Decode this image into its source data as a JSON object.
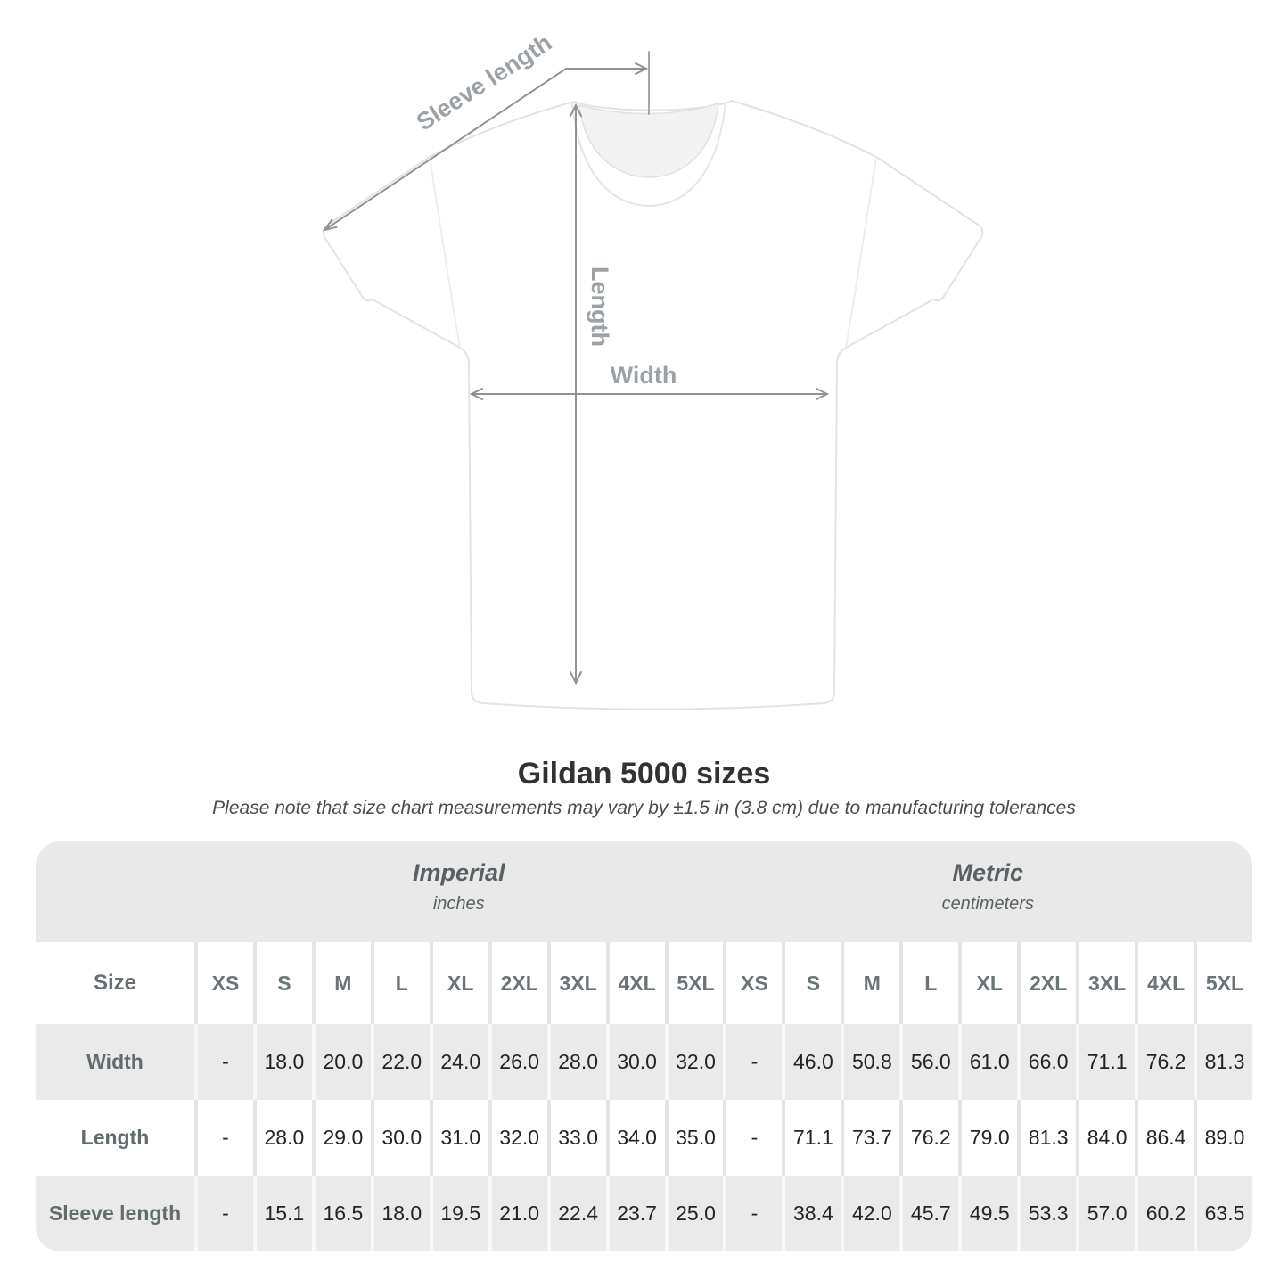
{
  "title": "Gildan 5000 sizes",
  "subtitle": "Please note that size chart measurements may vary by ±1.5 in (3.8 cm) due to manufacturing tolerances",
  "diagram": {
    "labels": {
      "sleeve_length": "Sleeve length",
      "length": "Length",
      "width": "Width"
    }
  },
  "chart_data": {
    "type": "table",
    "size_header": "Size",
    "groups": [
      {
        "name": "Imperial",
        "unit": "inches",
        "sizes": [
          "XS",
          "S",
          "M",
          "L",
          "XL",
          "2XL",
          "3XL",
          "4XL",
          "5XL"
        ]
      },
      {
        "name": "Metric",
        "unit": "centimeters",
        "sizes": [
          "XS",
          "S",
          "M",
          "L",
          "XL",
          "2XL",
          "3XL",
          "4XL",
          "5XL"
        ]
      }
    ],
    "rows": [
      {
        "label": "Width",
        "values": [
          "-",
          "18.0",
          "20.0",
          "22.0",
          "24.0",
          "26.0",
          "28.0",
          "30.0",
          "32.0",
          "-",
          "46.0",
          "50.8",
          "56.0",
          "61.0",
          "66.0",
          "71.1",
          "76.2",
          "81.3"
        ]
      },
      {
        "label": "Length",
        "values": [
          "-",
          "28.0",
          "29.0",
          "30.0",
          "31.0",
          "32.0",
          "33.0",
          "34.0",
          "35.0",
          "-",
          "71.1",
          "73.7",
          "76.2",
          "79.0",
          "81.3",
          "84.0",
          "86.4",
          "89.0"
        ]
      },
      {
        "label": "Sleeve length",
        "values": [
          "-",
          "15.1",
          "16.5",
          "18.0",
          "19.5",
          "21.0",
          "22.4",
          "23.7",
          "25.0",
          "-",
          "38.4",
          "42.0",
          "45.7",
          "49.5",
          "53.3",
          "57.0",
          "60.2",
          "63.5"
        ]
      }
    ]
  },
  "colors": {
    "band_gray": "#e9e9e9",
    "row_gray": "#eaeaea",
    "separator_on_white": "#e5e5e5",
    "separator_on_gray": "#f7f7f7",
    "arrow_gray": "#929292",
    "diagram_label_gray": "#9ba1a4",
    "title_color": "#323232",
    "value_color": "#242424"
  }
}
